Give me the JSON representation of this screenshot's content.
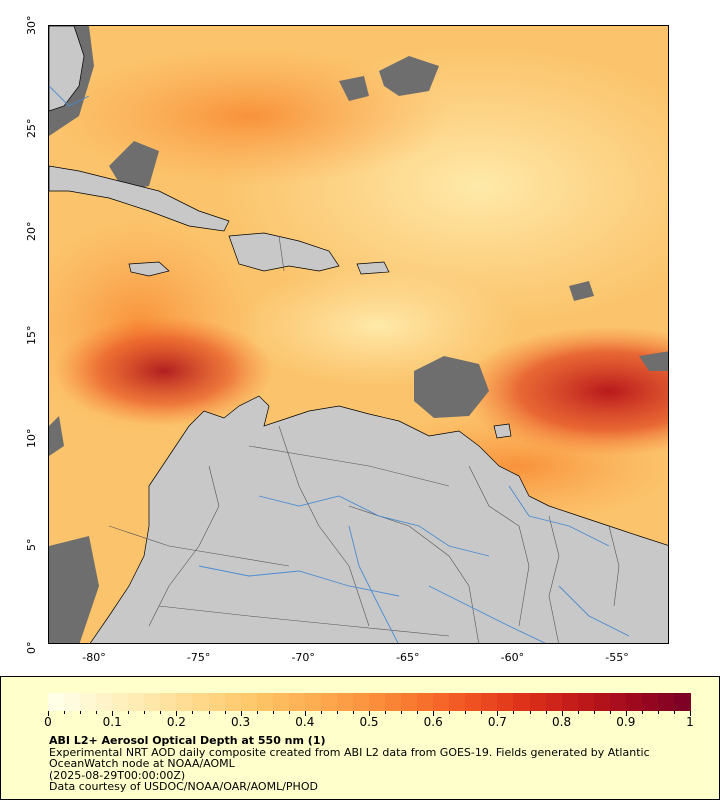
{
  "map": {
    "lat_labels": [
      "30°",
      "25°",
      "20°",
      "15°",
      "10°",
      "5°",
      "0°"
    ],
    "lon_labels": [
      "-80°",
      "-75°",
      "-70°",
      "-65°",
      "-60°",
      "-55°"
    ],
    "colors": {
      "land": "#c8c8c8",
      "no_data": "#6e6e6e",
      "rivers": "#4a8bd0",
      "borders": "#555555",
      "coastline": "#000000"
    }
  },
  "legend": {
    "ticks": [
      "0",
      "0.1",
      "0.2",
      "0.3",
      "0.4",
      "0.5",
      "0.6",
      "0.7",
      "0.8",
      "0.9",
      "1"
    ],
    "title": "ABI L2+ Aerosol Optical Depth at 550 nm (1)",
    "line1": "Experimental NRT AOD daily composite created from ABI L2 data from GOES-19. Fields generated by Atlantic",
    "line2": "OceanWatch node at NOAA/AOML",
    "line3": "(2025-08-29T00:00:00Z)",
    "line4": "Data courtesy of USDOC/NOAA/OAR/AOML/PHOD",
    "colors": [
      "#ffffe8",
      "#fff3c6",
      "#ffe4a4",
      "#ffd482",
      "#fdc264",
      "#fdac50",
      "#fc923e",
      "#f8732d",
      "#ef5121",
      "#dd3019",
      "#c11a19",
      "#a10a1e",
      "#7e0024"
    ]
  }
}
